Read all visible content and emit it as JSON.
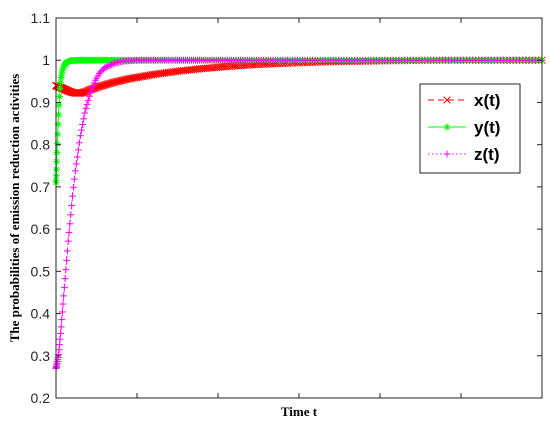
{
  "chart_data": {
    "type": "line",
    "title": "",
    "xlabel": "Time t",
    "ylabel": "The probabilities of emission reduction activities",
    "ylim": [
      0.2,
      1.1
    ],
    "yticks": [
      "0.2",
      "0.3",
      "0.4",
      "0.5",
      "0.6",
      "0.7",
      "0.8",
      "0.9",
      "1",
      "1.1"
    ],
    "xlim": [
      0,
      1
    ],
    "legend_position": "upper-right",
    "grid": false,
    "series": [
      {
        "name": "x(t)",
        "color": "#ff0000",
        "line_style": "dashed",
        "marker": "x",
        "points": [
          [
            0.0,
            0.94
          ],
          [
            0.01,
            0.935
          ],
          [
            0.02,
            0.93
          ],
          [
            0.03,
            0.925
          ],
          [
            0.04,
            0.922
          ],
          [
            0.05,
            0.922
          ],
          [
            0.06,
            0.925
          ],
          [
            0.07,
            0.93
          ],
          [
            0.09,
            0.938
          ],
          [
            0.12,
            0.948
          ],
          [
            0.15,
            0.956
          ],
          [
            0.2,
            0.966
          ],
          [
            0.25,
            0.974
          ],
          [
            0.3,
            0.98
          ],
          [
            0.35,
            0.985
          ],
          [
            0.4,
            0.989
          ],
          [
            0.45,
            0.992
          ],
          [
            0.5,
            0.994
          ],
          [
            0.55,
            0.996
          ],
          [
            0.6,
            0.997
          ],
          [
            0.65,
            0.998
          ],
          [
            0.7,
            0.999
          ],
          [
            0.8,
            1.0
          ],
          [
            1.0,
            1.0
          ]
        ]
      },
      {
        "name": "y(t)",
        "color": "#00ff00",
        "line_style": "solid",
        "marker": "*",
        "points": [
          [
            0.0,
            0.71
          ],
          [
            0.002,
            0.78
          ],
          [
            0.004,
            0.84
          ],
          [
            0.006,
            0.89
          ],
          [
            0.008,
            0.93
          ],
          [
            0.01,
            0.955
          ],
          [
            0.013,
            0.975
          ],
          [
            0.017,
            0.988
          ],
          [
            0.022,
            0.995
          ],
          [
            0.03,
            0.999
          ],
          [
            0.05,
            1.0
          ],
          [
            1.0,
            1.0
          ]
        ]
      },
      {
        "name": "z(t)",
        "color": "#ff00ff",
        "line_style": "dotted",
        "marker": "+",
        "points": [
          [
            0.0,
            0.27
          ],
          [
            0.005,
            0.3
          ],
          [
            0.01,
            0.36
          ],
          [
            0.015,
            0.43
          ],
          [
            0.02,
            0.5
          ],
          [
            0.025,
            0.57
          ],
          [
            0.03,
            0.63
          ],
          [
            0.035,
            0.69
          ],
          [
            0.04,
            0.74
          ],
          [
            0.05,
            0.82
          ],
          [
            0.06,
            0.88
          ],
          [
            0.07,
            0.92
          ],
          [
            0.08,
            0.95
          ],
          [
            0.09,
            0.97
          ],
          [
            0.1,
            0.982
          ],
          [
            0.12,
            0.993
          ],
          [
            0.14,
            0.998
          ],
          [
            0.17,
            1.0
          ],
          [
            1.0,
            1.0
          ]
        ]
      }
    ]
  }
}
